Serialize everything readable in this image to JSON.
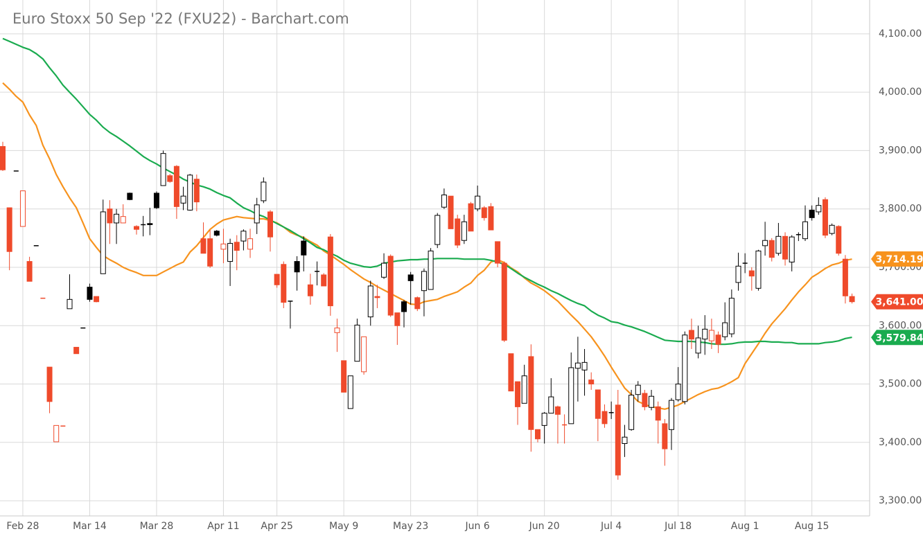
{
  "chart_data": {
    "type": "candlestick",
    "title": "Euro Stoxx 50 Sep '22 (FXU22) - Barchart.com",
    "categories": [
      null,
      null,
      null,
      "Feb 28",
      null,
      null,
      null,
      null,
      null,
      null,
      null,
      null,
      null,
      "Mar 14",
      null,
      null,
      null,
      null,
      null,
      null,
      null,
      null,
      null,
      "Mar 28",
      null,
      null,
      null,
      null,
      null,
      null,
      null,
      null,
      null,
      "Apr 11",
      null,
      null,
      null,
      null,
      null,
      null,
      null,
      "Apr 25",
      null,
      null,
      null,
      null,
      null,
      null,
      null,
      null,
      null,
      "May 9",
      null,
      null,
      null,
      null,
      null,
      null,
      null,
      null,
      null,
      "May 23",
      null,
      null,
      null,
      null,
      null,
      null,
      null,
      null,
      null,
      "Jun 6",
      null,
      null,
      null,
      null,
      null,
      null,
      null,
      null,
      null,
      "Jun 20",
      null,
      null,
      null,
      null,
      null,
      null,
      null,
      null,
      null,
      "Jul 4",
      null,
      null,
      null,
      null,
      null,
      null,
      null,
      null,
      null,
      "Jul 18",
      null,
      null,
      null,
      null,
      null,
      null,
      null,
      null,
      null,
      "Aug 1",
      null,
      null,
      null,
      null,
      null,
      null,
      null,
      null,
      null,
      "Aug 15",
      null,
      null,
      null,
      null,
      null,
      null
    ],
    "open": [
      3907,
      3802,
      3865,
      3770,
      3710,
      3737,
      3647,
      3529,
      3401,
      3428,
      3629,
      3563,
      3596,
      3666,
      3650,
      3689,
      3800,
      3776,
      3776,
      3827,
      3770,
      3773,
      3775,
      3827,
      3840,
      3857,
      3873,
      3810,
      3798,
      3851,
      3749,
      3749,
      3762,
      3731,
      3710,
      3743,
      3745,
      3731,
      3776,
      3814,
      3795,
      3688,
      3705,
      3641,
      3710,
      3745,
      3670,
      3692,
      3687,
      3752,
      3588,
      3540,
      3458,
      3539,
      3521,
      3615,
      3650,
      3683,
      3719,
      3622,
      3641,
      3687,
      3648,
      3660,
      3662,
      3739,
      3803,
      3822,
      3783,
      3746,
      3809,
      3800,
      3802,
      3804,
      3744,
      3707,
      3552,
      3504,
      3467,
      3547,
      3422,
      3429,
      3450,
      3461,
      3430,
      3432,
      3527,
      3524,
      3507,
      3490,
      3453,
      3451,
      3464,
      3398,
      3422,
      3482,
      3484,
      3460,
      3461,
      3432,
      3422,
      3473,
      3470,
      3592,
      3553,
      3577,
      3574,
      3584,
      3581,
      3586,
      3674,
      3706,
      3694,
      3664,
      3737,
      3746,
      3724,
      3753,
      3709,
      3756,
      3749,
      3798,
      3795,
      3816,
      3758,
      3770,
      3714,
      3650
    ],
    "high": [
      3915,
      3802,
      3865,
      3831,
      3718,
      3737,
      3647,
      3529,
      3429,
      3428,
      3688,
      3563,
      3596,
      3672,
      3650,
      3816,
      3815,
      3800,
      3808,
      3828,
      3772,
      3788,
      3802,
      3830,
      3900,
      3860,
      3875,
      3838,
      3860,
      3859,
      3777,
      3764,
      3764,
      3766,
      3749,
      3755,
      3765,
      3766,
      3819,
      3854,
      3798,
      3688,
      3710,
      3642,
      3719,
      3753,
      3689,
      3710,
      3690,
      3757,
      3612,
      3540,
      3514,
      3612,
      3581,
      3677,
      3670,
      3724,
      3722,
      3622,
      3644,
      3692,
      3650,
      3698,
      3733,
      3793,
      3835,
      3822,
      3790,
      3790,
      3812,
      3840,
      3805,
      3810,
      3744,
      3710,
      3552,
      3504,
      3533,
      3568,
      3422,
      3452,
      3510,
      3463,
      3448,
      3554,
      3581,
      3560,
      3520,
      3490,
      3465,
      3470,
      3490,
      3430,
      3490,
      3505,
      3490,
      3490,
      3470,
      3440,
      3476,
      3529,
      3590,
      3612,
      3600,
      3618,
      3612,
      3590,
      3640,
      3662,
      3725,
      3724,
      3700,
      3730,
      3778,
      3750,
      3776,
      3760,
      3755,
      3760,
      3806,
      3806,
      3820,
      3820,
      3775,
      3772,
      3721,
      3655
    ],
    "low": [
      3865,
      3695,
      3865,
      3770,
      3676,
      3737,
      3647,
      3450,
      3401,
      3428,
      3629,
      3552,
      3596,
      3641,
      3640,
      3689,
      3740,
      3740,
      3776,
      3815,
      3756,
      3753,
      3755,
      3800,
      3840,
      3845,
      3783,
      3798,
      3797,
      3796,
      3724,
      3699,
      3753,
      3707,
      3668,
      3695,
      3729,
      3716,
      3757,
      3810,
      3727,
      3665,
      3630,
      3595,
      3660,
      3693,
      3636,
      3669,
      3668,
      3617,
      3555,
      3486,
      3458,
      3539,
      3516,
      3600,
      3630,
      3680,
      3615,
      3567,
      3597,
      3636,
      3625,
      3616,
      3662,
      3733,
      3800,
      3766,
      3733,
      3740,
      3762,
      3796,
      3780,
      3764,
      3700,
      3572,
      3488,
      3430,
      3467,
      3384,
      3400,
      3398,
      3450,
      3398,
      3398,
      3432,
      3470,
      3480,
      3490,
      3402,
      3425,
      3440,
      3336,
      3375,
      3420,
      3470,
      3455,
      3455,
      3398,
      3360,
      3387,
      3470,
      3465,
      3560,
      3544,
      3550,
      3560,
      3553,
      3575,
      3580,
      3660,
      3690,
      3660,
      3660,
      3720,
      3710,
      3720,
      3703,
      3693,
      3745,
      3745,
      3780,
      3790,
      3750,
      3755,
      3720,
      3638,
      3638
    ],
    "close": [
      3867,
      3727,
      3865,
      3831,
      3676,
      3737,
      3647,
      3470,
      3429,
      3428,
      3645,
      3552,
      3596,
      3645,
      3641,
      3795,
      3776,
      3791,
      3787,
      3816,
      3765,
      3772,
      3773,
      3802,
      3895,
      3847,
      3804,
      3822,
      3858,
      3812,
      3724,
      3702,
      3755,
      3740,
      3741,
      3729,
      3762,
      3749,
      3807,
      3846,
      3752,
      3670,
      3640,
      3642,
      3692,
      3721,
      3651,
      3693,
      3668,
      3634,
      3596,
      3486,
      3514,
      3601,
      3581,
      3668,
      3648,
      3707,
      3618,
      3600,
      3624,
      3677,
      3629,
      3693,
      3728,
      3789,
      3824,
      3766,
      3738,
      3778,
      3762,
      3822,
      3785,
      3764,
      3707,
      3575,
      3488,
      3461,
      3514,
      3422,
      3406,
      3450,
      3478,
      3448,
      3429,
      3528,
      3536,
      3537,
      3500,
      3441,
      3432,
      3450,
      3344,
      3409,
      3481,
      3498,
      3461,
      3479,
      3438,
      3389,
      3472,
      3500,
      3584,
      3577,
      3579,
      3594,
      3592,
      3568,
      3605,
      3647,
      3702,
      3707,
      3685,
      3728,
      3746,
      3717,
      3753,
      3714,
      3752,
      3755,
      3778,
      3785,
      3806,
      3755,
      3772,
      3724,
      3651,
      3641
    ],
    "up_color": "#000000",
    "down_color": "#ef4a2b",
    "series": [
      {
        "color": "#f7931e",
        "values": [
          4016,
          4005,
          3993,
          3983,
          3961,
          3943,
          3909,
          3886,
          3859,
          3838,
          3819,
          3802,
          3776,
          3749,
          3734,
          3720,
          3713,
          3707,
          3700,
          3695,
          3691,
          3686,
          3686,
          3686,
          3692,
          3698,
          3704,
          3709,
          3726,
          3737,
          3751,
          3765,
          3774,
          3781,
          3784,
          3787,
          3785,
          3784,
          3783,
          3783,
          3780,
          3776,
          3769,
          3760,
          3755,
          3751,
          3744,
          3738,
          3728,
          3721,
          3713,
          3705,
          3696,
          3688,
          3680,
          3674,
          3667,
          3661,
          3655,
          3649,
          3643,
          3637,
          3636,
          3641,
          3643,
          3645,
          3650,
          3654,
          3658,
          3666,
          3673,
          3686,
          3695,
          3709,
          3713,
          3708,
          3699,
          3692,
          3682,
          3673,
          3667,
          3660,
          3651,
          3642,
          3630,
          3618,
          3607,
          3594,
          3581,
          3565,
          3548,
          3529,
          3511,
          3493,
          3482,
          3470,
          3465,
          3461,
          3459,
          3457,
          3460,
          3464,
          3470,
          3476,
          3482,
          3487,
          3491,
          3493,
          3498,
          3504,
          3511,
          3535,
          3552,
          3569,
          3587,
          3603,
          3616,
          3629,
          3644,
          3658,
          3670,
          3683,
          3690,
          3698,
          3704,
          3707,
          3712,
          3714
        ]
      },
      {
        "color": "#1aab4f",
        "values": [
          4092,
          4087,
          4082,
          4077,
          4073,
          4066,
          4057,
          4042,
          4028,
          4012,
          4000,
          3988,
          3975,
          3962,
          3952,
          3940,
          3931,
          3924,
          3916,
          3908,
          3899,
          3890,
          3883,
          3877,
          3870,
          3864,
          3858,
          3851,
          3846,
          3841,
          3838,
          3834,
          3828,
          3823,
          3819,
          3810,
          3802,
          3797,
          3791,
          3787,
          3781,
          3775,
          3769,
          3763,
          3756,
          3749,
          3742,
          3734,
          3730,
          3724,
          3719,
          3712,
          3707,
          3704,
          3701,
          3700,
          3702,
          3707,
          3709,
          3711,
          3712,
          3713,
          3713,
          3714,
          3714,
          3715,
          3715,
          3715,
          3715,
          3714,
          3714,
          3714,
          3714,
          3712,
          3709,
          3705,
          3698,
          3690,
          3683,
          3677,
          3671,
          3666,
          3660,
          3655,
          3649,
          3643,
          3638,
          3634,
          3625,
          3618,
          3613,
          3607,
          3605,
          3601,
          3598,
          3594,
          3590,
          3585,
          3580,
          3575,
          3574,
          3573,
          3573,
          3573,
          3572,
          3571,
          3569,
          3568,
          3568,
          3569,
          3571,
          3572,
          3572,
          3573,
          3573,
          3572,
          3572,
          3571,
          3571,
          3569,
          3569,
          3569,
          3569,
          3571,
          3572,
          3574,
          3578,
          3580
        ]
      }
    ],
    "last_labels": [
      {
        "value": 3714.19,
        "label": "3,714.19",
        "color": "#f7931e"
      },
      {
        "value": 3641.0,
        "label": "3,641.00",
        "color": "#ef4a2b"
      },
      {
        "value": 3579.84,
        "label": "3,579.84",
        "color": "#1aab4f"
      }
    ],
    "ylim": [
      3274,
      4158
    ],
    "yticks": [
      {
        "value": 3300,
        "label": "3,300.00"
      },
      {
        "value": 3400,
        "label": "3,400.00"
      },
      {
        "value": 3500,
        "label": "3,500.00"
      },
      {
        "value": 3600,
        "label": "3,600.00"
      },
      {
        "value": 3700,
        "label": "3,700.00"
      },
      {
        "value": 3800,
        "label": "3,800.00"
      },
      {
        "value": 3900,
        "label": "3,900.00"
      },
      {
        "value": 4000,
        "label": "4,000.00"
      },
      {
        "value": 4100,
        "label": "4,100.00"
      }
    ],
    "grid": true
  }
}
